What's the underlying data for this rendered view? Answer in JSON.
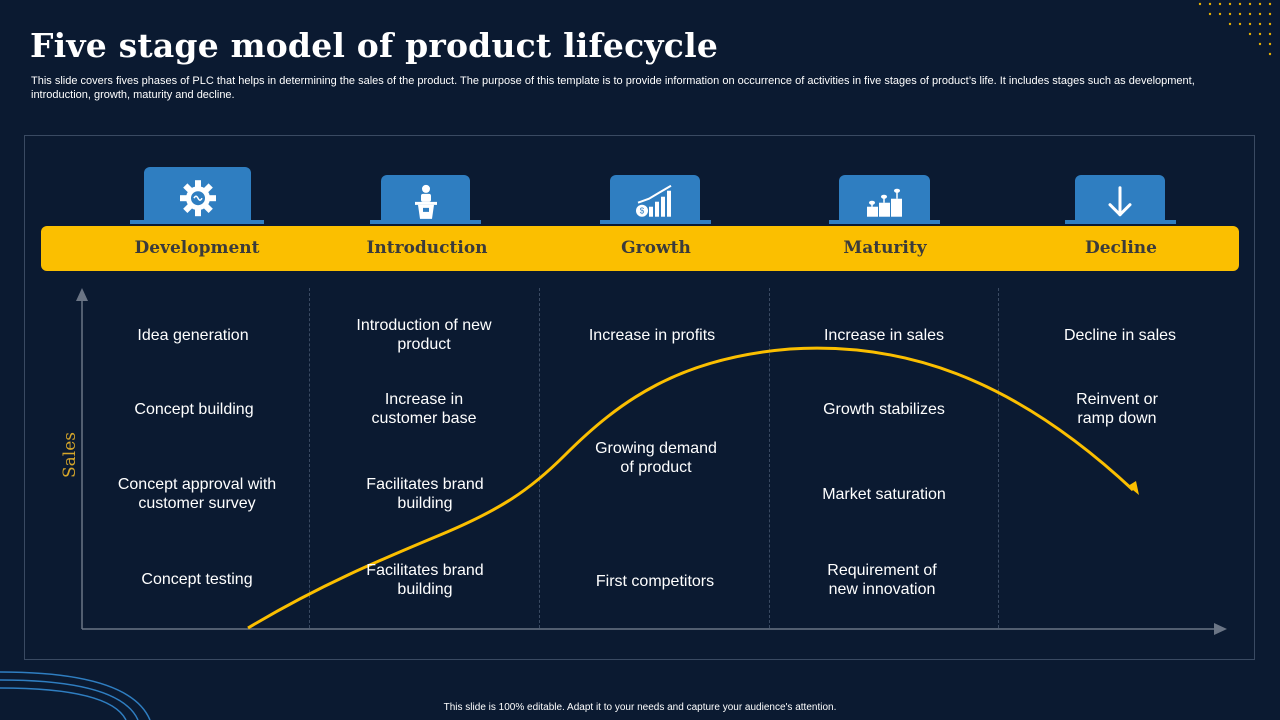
{
  "title": "Five stage model of product lifecycle",
  "subtitle": "This slide covers fives phases of PLC that helps in determining the sales of the product. The purpose of this template is to provide information on occurrence of activities in five stages of product’s life. It includes stages such as development, introduction, growth, maturity and decline.",
  "axis": {
    "ylabel": "Sales"
  },
  "stages": [
    {
      "label": "Development",
      "icon": "gear-brain-icon",
      "items": [
        "Idea generation",
        "Concept building",
        "Concept approval with customer survey",
        "Concept testing"
      ]
    },
    {
      "label": "Introduction",
      "icon": "presenter-podium-icon",
      "items": [
        "Introduction of new product",
        "Increase in customer base",
        "Facilitates brand building",
        "Facilitates brand building"
      ]
    },
    {
      "label": "Growth",
      "icon": "growth-chart-icon",
      "items": [
        "Increase in profits",
        "Growing demand of product",
        "First competitors"
      ]
    },
    {
      "label": "Maturity",
      "icon": "plant-growth-icon",
      "items": [
        "Increase in sales",
        "Growth stabilizes",
        "Market saturation",
        "Requirement of new innovation"
      ]
    },
    {
      "label": "Decline",
      "icon": "arrow-down-icon",
      "items": [
        "Decline in sales",
        "Reinvent or ramp down"
      ]
    }
  ],
  "colors": {
    "background": "#0b1a31",
    "accent": "#fbbf00",
    "tab": "#2f7ec1",
    "axis_label": "#d6a62a"
  },
  "footer": "This slide is 100% editable. Adapt it to your needs and capture your audience's attention."
}
